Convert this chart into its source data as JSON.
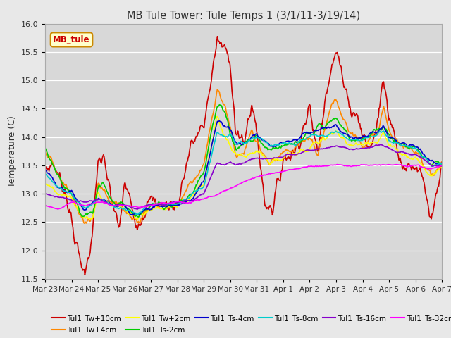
{
  "title": "MB Tule Tower: Tule Temps 1 (3/1/11-3/19/14)",
  "ylabel": "Temperature (C)",
  "ylim": [
    11.5,
    16.0
  ],
  "yticks": [
    11.5,
    12.0,
    12.5,
    13.0,
    13.5,
    14.0,
    14.5,
    15.0,
    15.5,
    16.0
  ],
  "bg_color": "#e8e8e8",
  "plot_bg_color": "#d8d8d8",
  "legend_label": "MB_tule",
  "series_colors": {
    "Tul1_Tw+10cm": "#cc0000",
    "Tul1_Tw+4cm": "#ff8800",
    "Tul1_Tw+2cm": "#ffff00",
    "Tul1_Ts-2cm": "#00cc00",
    "Tul1_Ts-4cm": "#0000cc",
    "Tul1_Ts-8cm": "#00cccc",
    "Tul1_Ts-16cm": "#8800cc",
    "Tul1_Ts-32cm": "#ff00ff"
  },
  "xtick_labels": [
    "Mar 23",
    "Mar 24",
    "Mar 25",
    "Mar 26",
    "Mar 27",
    "Mar 28",
    "Mar 29",
    "Mar 30",
    "Mar 31",
    "Apr 1",
    "Apr 2",
    "Apr 3",
    "Apr 4",
    "Apr 5",
    "Apr 6",
    "Apr 7"
  ],
  "n_points": 600,
  "legend_ncol": 6,
  "legend_rows": [
    [
      "Tul1_Tw+10cm",
      "Tul1_Tw+4cm",
      "Tul1_Tw+2cm",
      "Tul1_Ts-2cm",
      "Tul1_Ts-4cm",
      "Tul1_Ts-8cm"
    ],
    [
      "Tul1_Ts-16cm",
      "Tul1_Ts-32cm"
    ]
  ]
}
